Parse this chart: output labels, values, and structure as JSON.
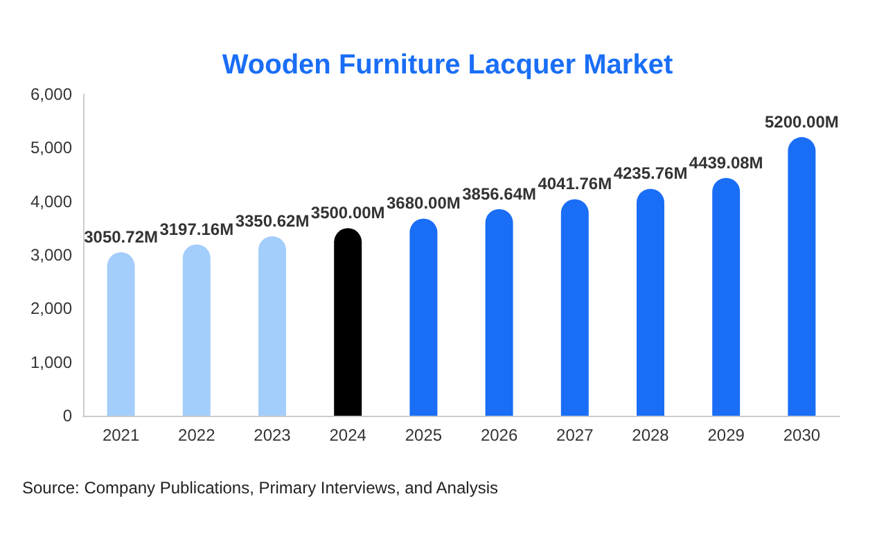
{
  "chart_data": {
    "type": "bar",
    "title": "Wooden Furniture Lacquer Market",
    "categories": [
      "2021",
      "2022",
      "2023",
      "2024",
      "2025",
      "2026",
      "2027",
      "2028",
      "2029",
      "2030"
    ],
    "values": [
      3050.72,
      3197.16,
      3350.62,
      3500.0,
      3680.0,
      3856.64,
      4041.76,
      4235.76,
      4439.08,
      5200.0
    ],
    "colors": [
      "#a3cdfb",
      "#a3cdfb",
      "#a3cdfb",
      "#000000",
      "#1a6ef5",
      "#1a6ef5",
      "#1a6ef5",
      "#1a6ef5",
      "#1a6ef5",
      "#1a6ef5"
    ],
    "value_labels": [
      "3050.72M",
      "3197.16M",
      "3350.62M",
      "3500.00M",
      "3680.00M",
      "3856.64M",
      "4041.76M",
      "4235.76M",
      "4439.08M",
      "5200.00M"
    ],
    "ylim": [
      0,
      6000
    ],
    "yticks": [
      {
        "value": 0,
        "label": "0"
      },
      {
        "value": 1000,
        "label": "1,000"
      },
      {
        "value": 2000,
        "label": "2,000"
      },
      {
        "value": 3000,
        "label": "3,000"
      },
      {
        "value": 4000,
        "label": "4,000"
      },
      {
        "value": 5000,
        "label": "5,000"
      },
      {
        "value": 6000,
        "label": "6,000"
      }
    ],
    "grid": false,
    "annotations": [
      "Source: Company Publications, Primary Interviews, and Analysis"
    ]
  }
}
